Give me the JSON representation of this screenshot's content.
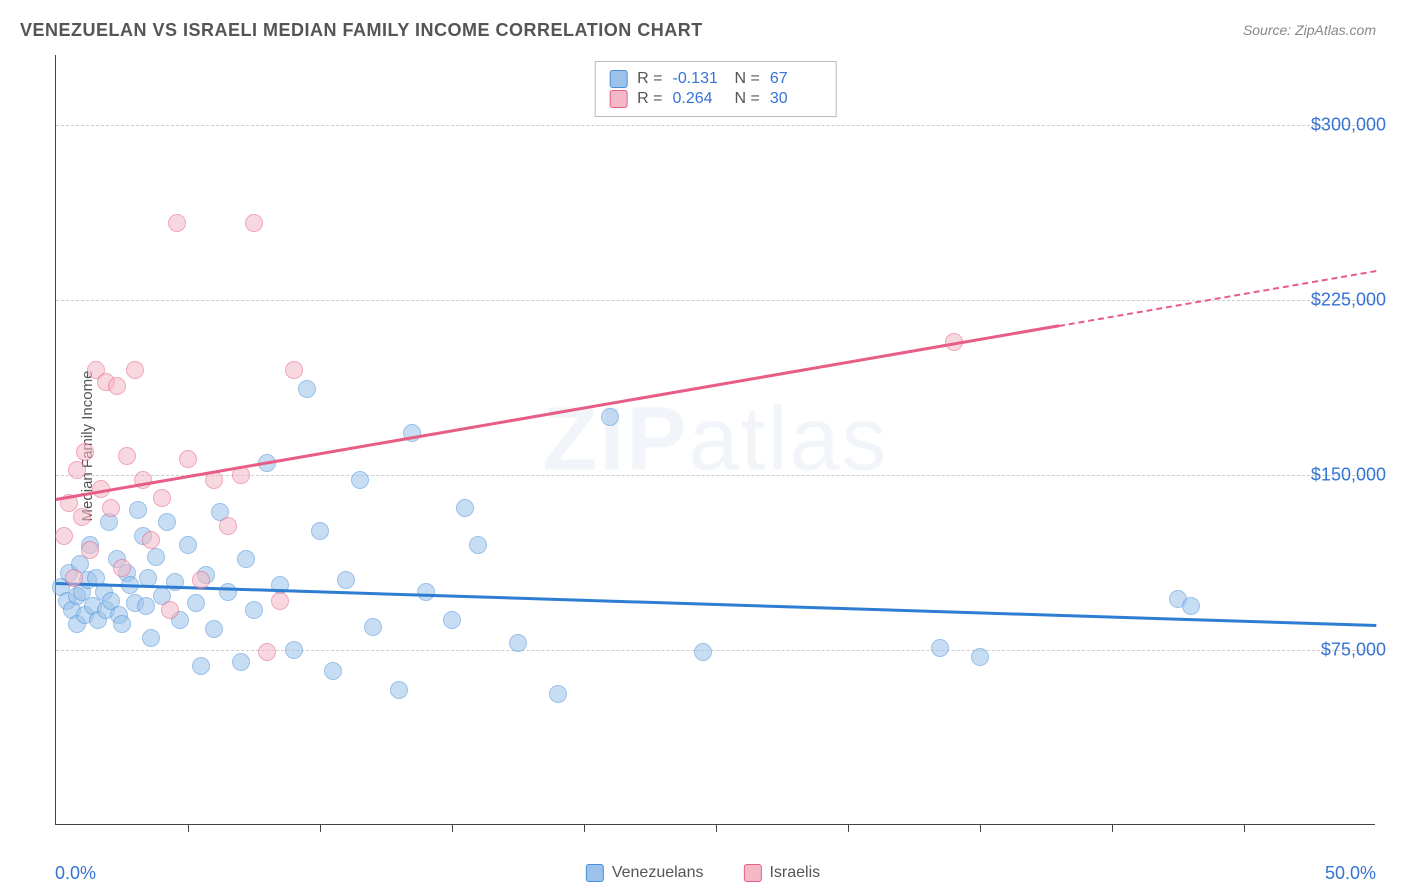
{
  "title": "VENEZUELAN VS ISRAELI MEDIAN FAMILY INCOME CORRELATION CHART",
  "source_label": "Source:",
  "source_value": "ZipAtlas.com",
  "watermark": {
    "part1": "ZIP",
    "part2": "atlas"
  },
  "ylabel": "Median Family Income",
  "chart": {
    "type": "scatter",
    "xlim": [
      0,
      50
    ],
    "ylim": [
      0,
      330000
    ],
    "x_tick_labels": {
      "min": "0.0%",
      "max": "50.0%"
    },
    "x_ticks_minor": [
      5,
      10,
      15,
      20,
      25,
      30,
      35,
      40,
      45
    ],
    "y_gridlines": [
      {
        "value": 75000,
        "label": "$75,000"
      },
      {
        "value": 150000,
        "label": "$150,000"
      },
      {
        "value": 225000,
        "label": "$225,000"
      },
      {
        "value": 300000,
        "label": "$300,000"
      }
    ],
    "background_color": "#ffffff",
    "grid_color": "#cccccc",
    "axis_color": "#444444",
    "tick_label_color": "#3573d6",
    "point_radius": 9,
    "point_opacity": 0.55,
    "series": [
      {
        "name": "Venezuelans",
        "color_fill": "#9ac2ea",
        "color_stroke": "#4a8fd6",
        "R": "-0.131",
        "N": "67",
        "trend": {
          "x1": 0,
          "y1": 104000,
          "x2": 50,
          "y2": 86000,
          "color": "#2d7dd2",
          "dash_after": 50
        },
        "points": [
          [
            0.2,
            102000
          ],
          [
            0.4,
            96000
          ],
          [
            0.5,
            108000
          ],
          [
            0.6,
            92000
          ],
          [
            0.8,
            98000
          ],
          [
            0.8,
            86000
          ],
          [
            0.9,
            112000
          ],
          [
            1.0,
            100000
          ],
          [
            1.1,
            90000
          ],
          [
            1.2,
            105000
          ],
          [
            1.3,
            120000
          ],
          [
            1.4,
            94000
          ],
          [
            1.5,
            106000
          ],
          [
            1.6,
            88000
          ],
          [
            1.8,
            100000
          ],
          [
            1.9,
            92000
          ],
          [
            2.0,
            130000
          ],
          [
            2.1,
            96000
          ],
          [
            2.3,
            114000
          ],
          [
            2.4,
            90000
          ],
          [
            2.5,
            86000
          ],
          [
            2.7,
            108000
          ],
          [
            2.8,
            103000
          ],
          [
            3.0,
            95000
          ],
          [
            3.1,
            135000
          ],
          [
            3.3,
            124000
          ],
          [
            3.4,
            94000
          ],
          [
            3.5,
            106000
          ],
          [
            3.6,
            80000
          ],
          [
            3.8,
            115000
          ],
          [
            4.0,
            98000
          ],
          [
            4.2,
            130000
          ],
          [
            4.5,
            104000
          ],
          [
            4.7,
            88000
          ],
          [
            5.0,
            120000
          ],
          [
            5.3,
            95000
          ],
          [
            5.5,
            68000
          ],
          [
            5.7,
            107000
          ],
          [
            6.0,
            84000
          ],
          [
            6.2,
            134000
          ],
          [
            6.5,
            100000
          ],
          [
            7.0,
            70000
          ],
          [
            7.2,
            114000
          ],
          [
            7.5,
            92000
          ],
          [
            8.0,
            155000
          ],
          [
            8.5,
            103000
          ],
          [
            9.0,
            75000
          ],
          [
            9.5,
            187000
          ],
          [
            10.0,
            126000
          ],
          [
            10.5,
            66000
          ],
          [
            11.0,
            105000
          ],
          [
            11.5,
            148000
          ],
          [
            12.0,
            85000
          ],
          [
            13.0,
            58000
          ],
          [
            13.5,
            168000
          ],
          [
            14.0,
            100000
          ],
          [
            15.0,
            88000
          ],
          [
            15.5,
            136000
          ],
          [
            16.0,
            120000
          ],
          [
            17.5,
            78000
          ],
          [
            19.0,
            56000
          ],
          [
            21.0,
            175000
          ],
          [
            24.5,
            74000
          ],
          [
            33.5,
            76000
          ],
          [
            35.0,
            72000
          ],
          [
            42.5,
            97000
          ],
          [
            43.0,
            94000
          ]
        ]
      },
      {
        "name": "Israelis",
        "color_fill": "#f3b9c7",
        "color_stroke": "#e85d85",
        "R": "0.264",
        "N": "30",
        "trend": {
          "x1": 0,
          "y1": 140000,
          "x2": 50,
          "y2": 238000,
          "color": "#e85d85",
          "dash_after": 38
        },
        "points": [
          [
            0.3,
            124000
          ],
          [
            0.5,
            138000
          ],
          [
            0.7,
            106000
          ],
          [
            0.8,
            152000
          ],
          [
            1.0,
            132000
          ],
          [
            1.1,
            160000
          ],
          [
            1.3,
            118000
          ],
          [
            1.5,
            195000
          ],
          [
            1.7,
            144000
          ],
          [
            1.9,
            190000
          ],
          [
            2.1,
            136000
          ],
          [
            2.3,
            188000
          ],
          [
            2.5,
            110000
          ],
          [
            2.7,
            158000
          ],
          [
            3.0,
            195000
          ],
          [
            3.3,
            148000
          ],
          [
            3.6,
            122000
          ],
          [
            4.0,
            140000
          ],
          [
            4.3,
            92000
          ],
          [
            4.6,
            258000
          ],
          [
            5.0,
            157000
          ],
          [
            5.5,
            105000
          ],
          [
            6.0,
            148000
          ],
          [
            6.5,
            128000
          ],
          [
            7.0,
            150000
          ],
          [
            7.5,
            258000
          ],
          [
            8.0,
            74000
          ],
          [
            8.5,
            96000
          ],
          [
            9.0,
            195000
          ],
          [
            34.0,
            207000
          ]
        ]
      }
    ]
  },
  "legend_top": {
    "R_label": "R =",
    "N_label": "N ="
  },
  "legend_bottom": {
    "items": [
      "Venezuelans",
      "Israelis"
    ]
  }
}
